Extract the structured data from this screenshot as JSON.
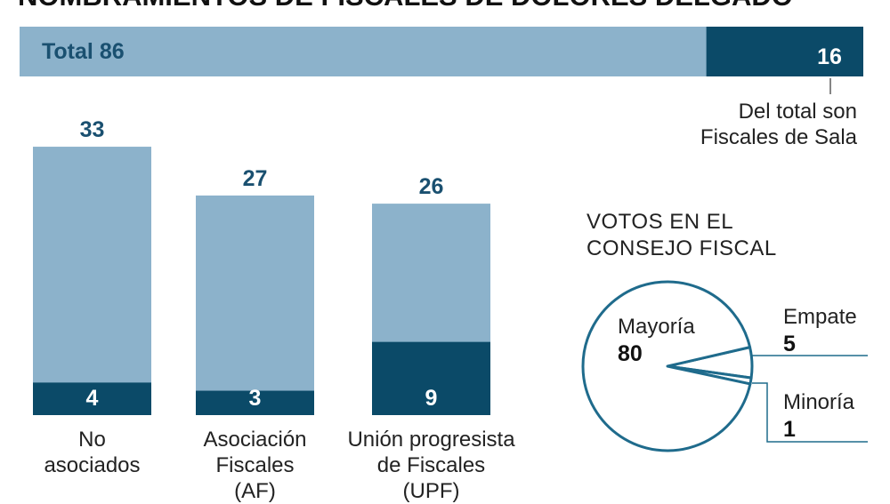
{
  "title": "NOMBRAMIENTOS DE FISCALES DE DOLORES DELGADO",
  "chart_data": [
    {
      "type": "bar",
      "orientation": "horizontal",
      "label": "Total",
      "series": [
        {
          "values": [
            86
          ],
          "color": "#8cb2cb"
        },
        {
          "values": [
            16
          ],
          "color": "#0b4a68"
        }
      ],
      "annotation": [
        "Del total son",
        "Fiscales de Sala"
      ]
    },
    {
      "type": "bar",
      "categories": [
        [
          "No",
          "asociados"
        ],
        [
          "Asociación",
          "Fiscales",
          "(AF)"
        ],
        [
          "Unión progresista",
          "de Fiscales",
          "(UPF)"
        ]
      ],
      "series": [
        {
          "values": [
            33,
            27,
            26
          ],
          "color": "#8cb2cb"
        },
        {
          "values": [
            4,
            3,
            9
          ],
          "color": "#0b4a68"
        }
      ]
    },
    {
      "type": "pie",
      "title": [
        "VOTOS EN EL",
        "CONSEJO FISCAL"
      ],
      "labels": [
        "Empate",
        "Minoría",
        "Mayoría"
      ],
      "values": [
        5,
        1,
        80
      ],
      "color": "#1f6b8c"
    }
  ]
}
